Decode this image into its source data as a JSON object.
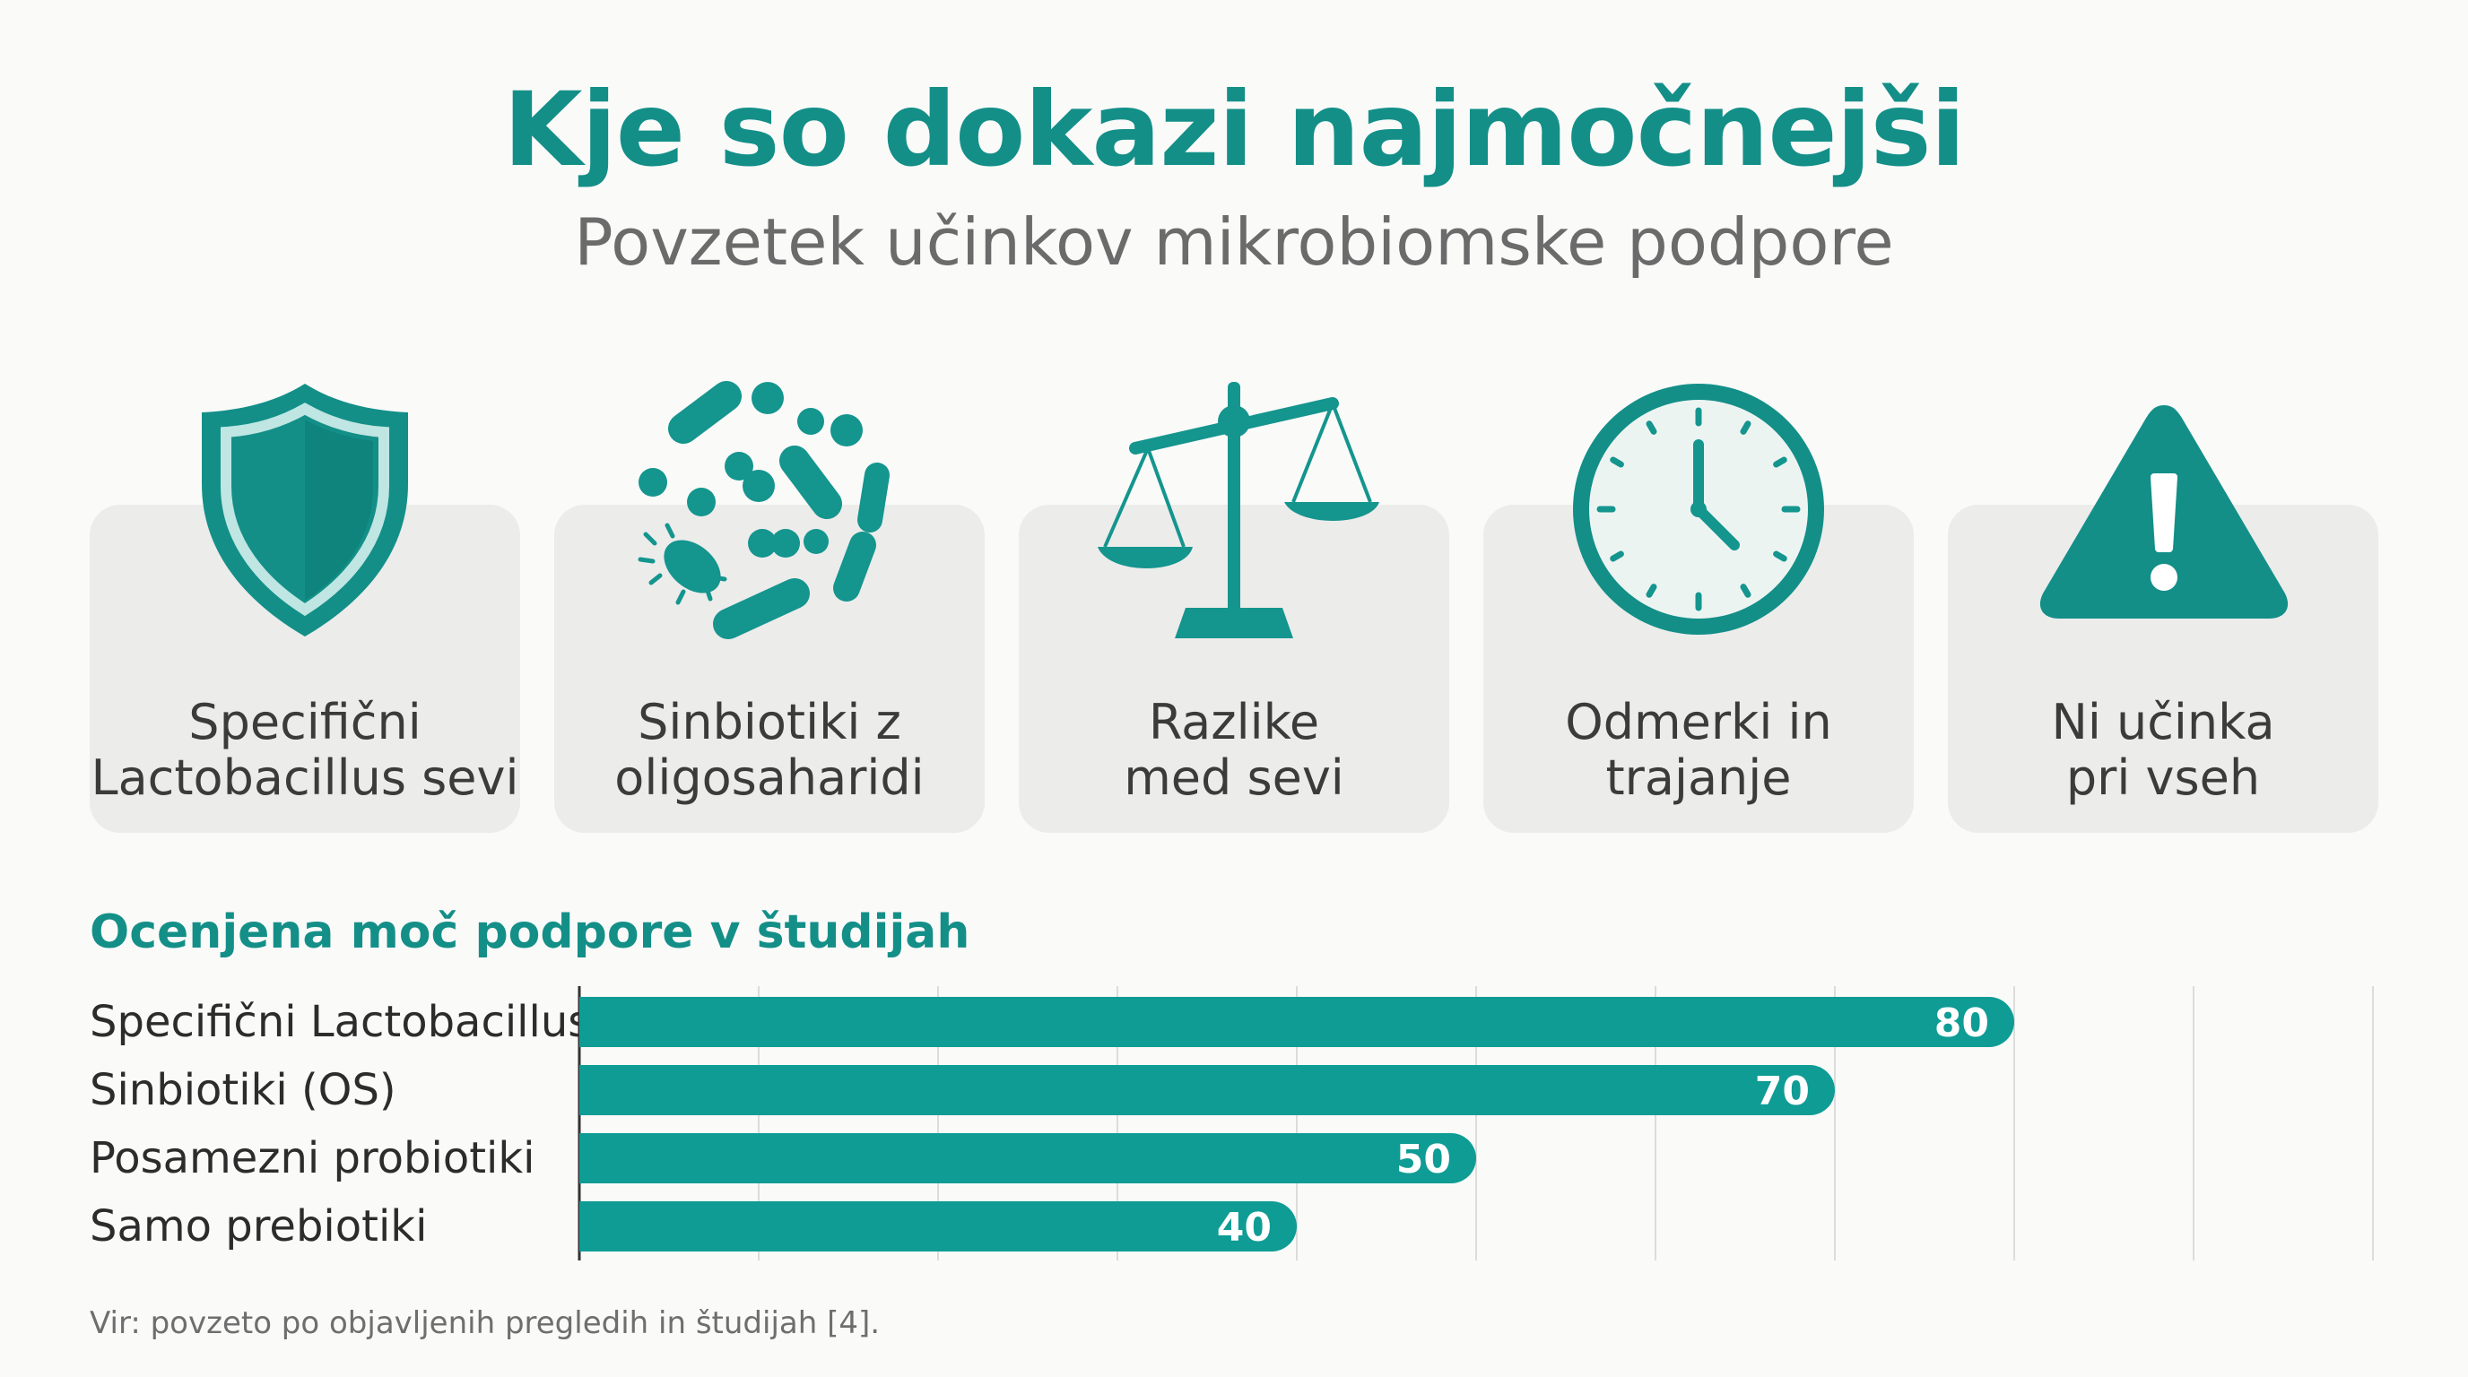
{
  "title": "Kje so dokazi najmočnejši",
  "subtitle": "Povzetek učinkov mikrobiomske podpore",
  "colors": {
    "accent": "#138f88",
    "bar": "#0e9c95",
    "card": "#ececeb"
  },
  "cards": [
    {
      "icon": "shield-icon",
      "label": "Specifični\nLactobacillus sevi"
    },
    {
      "icon": "bacteria-icon",
      "label": "Sinbiotiki z\noligosaharidi"
    },
    {
      "icon": "balance-scale-icon",
      "label": "Razlike\nmed sevi"
    },
    {
      "icon": "clock-icon",
      "label": "Odmerki in\ntrajanje"
    },
    {
      "icon": "warning-icon",
      "label": "Ni učinka\npri vseh"
    }
  ],
  "chart_data": {
    "type": "bar",
    "orientation": "horizontal",
    "title": "Ocenjena moč podpore v študijah",
    "categories": [
      "Specifični Lactobacillus",
      "Sinbiotiki (OS)",
      "Posamezni probiotiki",
      "Samo prebiotiki"
    ],
    "values": [
      80,
      70,
      50,
      40
    ],
    "xlim": [
      0,
      100
    ],
    "grid": true,
    "data_labels": true
  },
  "source": "Vir: povzeto po objavljenih pregledih in študijah [4]."
}
